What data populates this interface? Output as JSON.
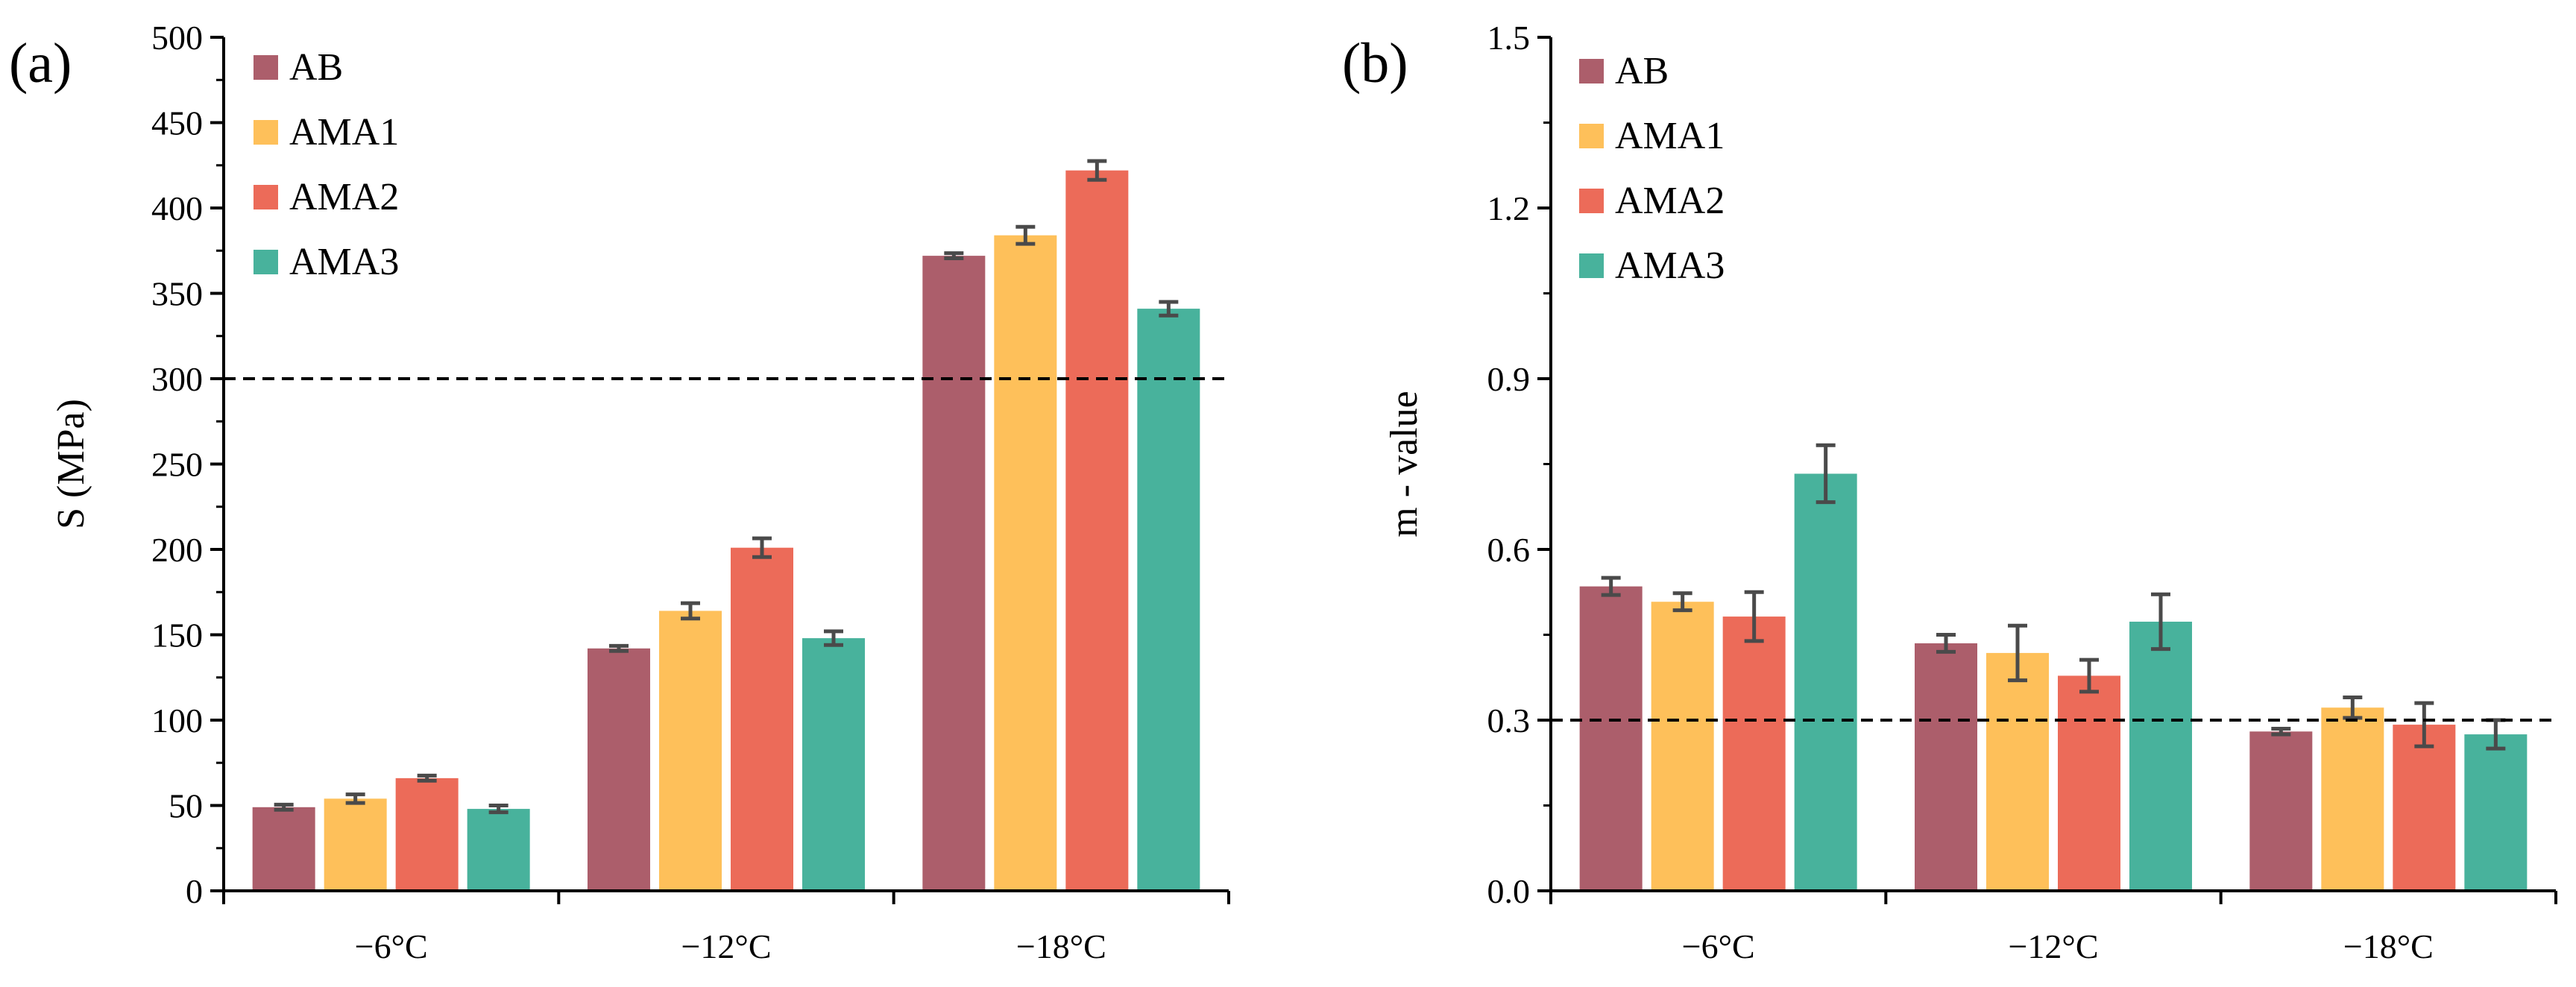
{
  "chart_data": [
    {
      "type": "bar",
      "panel_label": "(a)",
      "title": "",
      "xlabel": "",
      "ylabel": "S (MPa)",
      "categories": [
        "−6°C",
        "−12°C",
        "−18°C"
      ],
      "ylim": [
        0,
        500
      ],
      "yticks": [
        0,
        50,
        100,
        150,
        200,
        250,
        300,
        350,
        400,
        450,
        500
      ],
      "ytick_labels": [
        "0",
        "50",
        "100",
        "150",
        "200",
        "250",
        "300",
        "350",
        "400",
        "450",
        "500"
      ],
      "reference_line": 300,
      "legend_position": "top-left",
      "series": [
        {
          "name": "AB",
          "color": "#ac5e6b",
          "values": [
            49,
            142,
            372
          ],
          "errors": [
            1.5,
            1.5,
            1.5
          ]
        },
        {
          "name": "AMA1",
          "color": "#fec05a",
          "values": [
            54,
            164,
            384
          ],
          "errors": [
            2.5,
            4.5,
            5
          ]
        },
        {
          "name": "AMA2",
          "color": "#ec6b59",
          "values": [
            66,
            201,
            422
          ],
          "errors": [
            1.5,
            5.5,
            5.5
          ]
        },
        {
          "name": "AMA3",
          "color": "#48b29c",
          "values": [
            48,
            148,
            341
          ],
          "errors": [
            2,
            4,
            4
          ]
        }
      ]
    },
    {
      "type": "bar",
      "panel_label": "(b)",
      "title": "",
      "xlabel": "",
      "ylabel": "m - value",
      "categories": [
        "−6°C",
        "−12°C",
        "−18°C"
      ],
      "ylim": [
        0,
        1.5
      ],
      "yticks": [
        0,
        0.3,
        0.6,
        0.9,
        1.2,
        1.5
      ],
      "ytick_labels": [
        "0.0",
        "0.3",
        "0.6",
        "0.9",
        "1.2",
        "1.5"
      ],
      "reference_line": 0.3,
      "legend_position": "top-left",
      "series": [
        {
          "name": "AB",
          "color": "#ac5e6b",
          "values": [
            0.535,
            0.435,
            0.28
          ],
          "errors": [
            0.015,
            0.015,
            0.005
          ]
        },
        {
          "name": "AMA1",
          "color": "#fec05a",
          "values": [
            0.508,
            0.418,
            0.322
          ],
          "errors": [
            0.015,
            0.048,
            0.018
          ]
        },
        {
          "name": "AMA2",
          "color": "#ec6b59",
          "values": [
            0.482,
            0.378,
            0.292
          ],
          "errors": [
            0.043,
            0.028,
            0.038
          ]
        },
        {
          "name": "AMA3",
          "color": "#48b29c",
          "values": [
            0.733,
            0.473,
            0.275
          ],
          "errors": [
            0.05,
            0.048,
            0.025
          ]
        }
      ]
    }
  ]
}
